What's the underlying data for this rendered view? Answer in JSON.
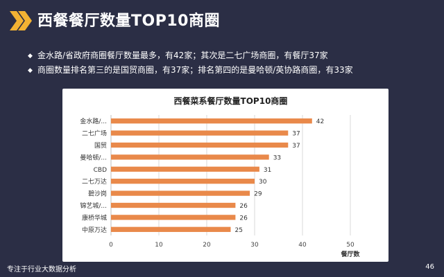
{
  "header": {
    "title": "西餐餐厅数量TOP10商圈"
  },
  "bullets": [
    "金水路/省政府商圈餐厅数量最多，有42家；其次是二七广场商圈，有餐厅37家",
    "商圈数量排名第三的是国贸商圈，有37家；排名第四的是曼哈顿/英协路商圈，有33家"
  ],
  "footer": {
    "left": "专注于行业大数据分析",
    "page": "46"
  },
  "colors": {
    "background": "#2b2e45",
    "accent": "#f2b233",
    "bar": "#e9894a"
  },
  "chart_data": {
    "type": "bar",
    "orientation": "horizontal",
    "title": "西餐菜系餐厅数量TOP10商圈",
    "categories": [
      "金水路/...",
      "二七广场",
      "国贸",
      "曼哈顿/...",
      "CBD",
      "二七万达",
      "碧沙岗",
      "锦艺城/...",
      "康桥华城",
      "中原万达"
    ],
    "values": [
      42,
      37,
      37,
      33,
      31,
      30,
      29,
      26,
      26,
      25
    ],
    "xlabel": "餐厅数",
    "ylabel": "",
    "xlim": [
      0,
      50
    ],
    "xticks": [
      0,
      10,
      20,
      30,
      40,
      50
    ],
    "grid": true
  }
}
